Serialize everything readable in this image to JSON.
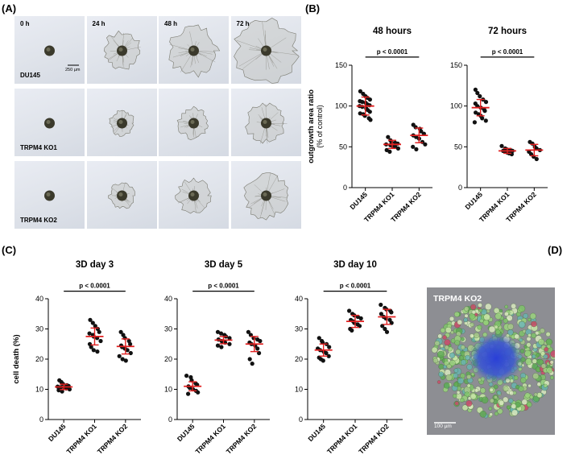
{
  "panels": {
    "A": "(A)",
    "B": "(B)",
    "C": "(C)",
    "D": "(D)"
  },
  "micrographs": {
    "time_labels": [
      "0 h",
      "24 h",
      "48 h",
      "72 h"
    ],
    "row_labels": [
      "DU145",
      "TRPM4 KO1",
      "TRPM4 KO2"
    ],
    "scale_bar": "250 µm",
    "outgrowth_level": [
      [
        0.0,
        0.45,
        0.72,
        1.0
      ],
      [
        0.0,
        0.18,
        0.32,
        0.5
      ],
      [
        0.0,
        0.2,
        0.38,
        0.62
      ]
    ]
  },
  "colors": {
    "dot": "#111111",
    "mean_bar": "#e02020",
    "spheroid": "#3b3a2c",
    "outgrowth": "#7a7a70"
  },
  "fluorescence": {
    "label": "TRPM4 KO2",
    "scale_bar": "100 µm"
  },
  "chart_data": [
    {
      "type": "scatter",
      "panel": "B",
      "title": "48 hours",
      "ylabel": "outgrowth area ratio",
      "ylabel_sub": "(% of control)",
      "categories": [
        "DU145",
        "TRPM4 KO1",
        "TRPM4 KO2"
      ],
      "yticks": [
        0,
        50,
        100,
        150
      ],
      "ylim": [
        0,
        150
      ],
      "significance": "p < 0.0001",
      "sig_y": 160,
      "series": [
        {
          "category": "DU145",
          "mean": 100,
          "sd": 11,
          "values": [
            118,
            115,
            112,
            110,
            108,
            106,
            105,
            104,
            102,
            101,
            100,
            99,
            97,
            95,
            93,
            91,
            90,
            88,
            85,
            83
          ]
        },
        {
          "category": "TRPM4 KO1",
          "mean": 53,
          "sd": 5,
          "values": [
            62,
            58,
            56,
            55,
            54,
            53,
            52,
            51,
            50,
            48,
            46,
            44
          ]
        },
        {
          "category": "TRPM4 KO2",
          "mean": 64,
          "sd": 9,
          "values": [
            77,
            74,
            72,
            69,
            66,
            64,
            62,
            60,
            56,
            53,
            50,
            47
          ]
        }
      ]
    },
    {
      "type": "scatter",
      "panel": "B",
      "title": "72 hours",
      "ylabel": "",
      "ylabel_sub": "",
      "categories": [
        "DU145",
        "TRPM4 KO1",
        "TRPM4 KO2"
      ],
      "yticks": [
        0,
        50,
        100,
        150
      ],
      "ylim": [
        0,
        150
      ],
      "significance": "p < 0.0001",
      "sig_y": 160,
      "series": [
        {
          "category": "DU145",
          "mean": 98,
          "sd": 10,
          "values": [
            120,
            116,
            112,
            108,
            105,
            103,
            100,
            98,
            96,
            94,
            92,
            90,
            88,
            85,
            82,
            80
          ]
        },
        {
          "category": "TRPM4 KO1",
          "mean": 45,
          "sd": 3,
          "values": [
            51,
            48,
            47,
            46,
            45,
            45,
            44,
            43,
            42,
            41
          ]
        },
        {
          "category": "TRPM4 KO2",
          "mean": 46,
          "sd": 7,
          "values": [
            56,
            54,
            50,
            48,
            46,
            44,
            41,
            38,
            35
          ]
        }
      ]
    },
    {
      "type": "scatter",
      "panel": "C",
      "title": "3D  day 3",
      "ylabel": "cell death (%)",
      "ylabel_sub": "",
      "categories": [
        "DU145",
        "TRPM4 KO1",
        "TRPM4 KO2"
      ],
      "yticks": [
        0,
        10,
        20,
        30,
        40
      ],
      "ylim": [
        0,
        40
      ],
      "significance": "p < 0.0001",
      "sig_y": 42.5,
      "series": [
        {
          "category": "DU145",
          "mean": 10.8,
          "sd": 0.9,
          "values": [
            13,
            12.4,
            11.8,
            11.4,
            11.1,
            10.9,
            10.7,
            10.5,
            10.3,
            10,
            9.7,
            9.3
          ]
        },
        {
          "category": "TRPM4 KO1",
          "mean": 27.5,
          "sd": 2.8,
          "values": [
            33,
            32,
            31,
            30,
            29,
            28.5,
            28,
            27.5,
            27,
            26,
            25,
            24,
            23,
            22.5
          ]
        },
        {
          "category": "TRPM4 KO2",
          "mean": 24.2,
          "sd": 2.5,
          "values": [
            29,
            28,
            27,
            26,
            25,
            24.5,
            24,
            23.5,
            23,
            22,
            21,
            20,
            19.5
          ]
        }
      ]
    },
    {
      "type": "scatter",
      "panel": "C",
      "title": "3D  day 5",
      "ylabel": "",
      "ylabel_sub": "",
      "categories": [
        "DU145",
        "TRPM4 KO1",
        "TRPM4 KO2"
      ],
      "yticks": [
        0,
        10,
        20,
        30,
        40
      ],
      "ylim": [
        0,
        40
      ],
      "significance": "p < 0.0001",
      "sig_y": 42.5,
      "series": [
        {
          "category": "DU145",
          "mean": 11,
          "sd": 1.5,
          "values": [
            14.5,
            14,
            13,
            12,
            11.5,
            11,
            10.5,
            10,
            9.5,
            9,
            8.5
          ]
        },
        {
          "category": "TRPM4 KO1",
          "mean": 26.3,
          "sd": 1.2,
          "values": [
            29,
            28.5,
            28,
            27.5,
            27,
            26.5,
            26,
            25.8,
            25.5,
            25,
            24.5,
            24
          ]
        },
        {
          "category": "TRPM4 KO2",
          "mean": 25,
          "sd": 2.5,
          "values": [
            29,
            28,
            27,
            26.5,
            26,
            25.5,
            25,
            24.5,
            23.5,
            22,
            20,
            18.5
          ]
        }
      ]
    },
    {
      "type": "scatter",
      "panel": "C",
      "title": "3D  day 10",
      "ylabel": "",
      "ylabel_sub": "",
      "categories": [
        "DU145",
        "TRPM4 KO1",
        "TRPM4 KO2"
      ],
      "yticks": [
        0,
        10,
        20,
        30,
        40
      ],
      "ylim": [
        0,
        40
      ],
      "significance": "p < 0.0001",
      "sig_y": 42.5,
      "series": [
        {
          "category": "DU145",
          "mean": 23,
          "sd": 2,
          "values": [
            27,
            26,
            25.5,
            25,
            24,
            23.5,
            23,
            22.5,
            22,
            21,
            20.5,
            20,
            19.5
          ]
        },
        {
          "category": "TRPM4 KO1",
          "mean": 32.5,
          "sd": 2,
          "values": [
            36,
            35,
            34.5,
            34,
            33.5,
            33,
            32.5,
            32,
            31.5,
            31,
            30,
            29.5
          ]
        },
        {
          "category": "TRPM4 KO2",
          "mean": 34,
          "sd": 2.5,
          "values": [
            38,
            37,
            36.5,
            36,
            35.5,
            35,
            34,
            33.5,
            33,
            32,
            31,
            30,
            29
          ]
        }
      ]
    }
  ]
}
